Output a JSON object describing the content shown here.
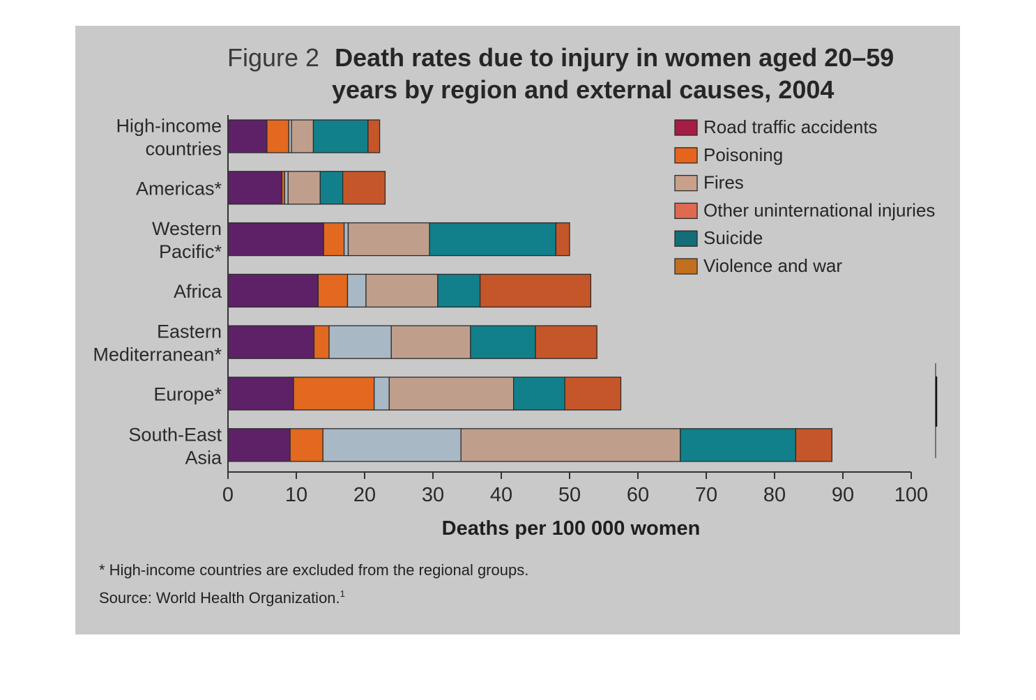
{
  "title_prefix": "Figure 2",
  "title_line1": "Death rates due to injury in women aged 20–59",
  "title_line2": "years by region and external causes, 2004",
  "footnote": "* High-income countries are excluded from the regional groups.",
  "source": "Source: World Health Organization.",
  "source_sup": "1",
  "chart_data": {
    "type": "bar",
    "orientation": "horizontal",
    "stacked": true,
    "title": "Death rates due to injury in women aged 20–59 years by region and external causes, 2004",
    "xlabel": "Deaths per 100 000 women",
    "ylabel": "",
    "xlim": [
      0,
      100
    ],
    "xticks": [
      0,
      10,
      20,
      30,
      40,
      50,
      60,
      70,
      80,
      90,
      100
    ],
    "legend_position": "top-right",
    "grid": false,
    "categories": [
      {
        "line1": "High-income",
        "line2": "countries"
      },
      {
        "line1": "Americas*",
        "line2": ""
      },
      {
        "line1": "Western",
        "line2": "Pacific*"
      },
      {
        "line1": "Africa",
        "line2": ""
      },
      {
        "line1": "Eastern",
        "line2": "Mediterranean*"
      },
      {
        "line1": "Europe*",
        "line2": ""
      },
      {
        "line1": "South-East",
        "line2": "Asia"
      }
    ],
    "series": [
      {
        "name": "Road traffic accidents",
        "color": "#5e2167",
        "values": [
          5.7,
          7.9,
          14.0,
          13.2,
          12.6,
          9.6,
          9.1
        ]
      },
      {
        "name": "Poisoning",
        "color": "#e2691f",
        "values": [
          3.2,
          0.4,
          3.0,
          4.3,
          2.2,
          11.8,
          4.8
        ]
      },
      {
        "name": "",
        "color": "#a9b8c5",
        "values": [
          0.4,
          0.5,
          0.6,
          2.7,
          9.1,
          2.2,
          20.2
        ]
      },
      {
        "name": "Fires",
        "color": "#bf9f8c",
        "values": [
          3.2,
          4.7,
          11.9,
          10.5,
          11.6,
          18.2,
          32.1
        ]
      },
      {
        "name": "Suicide",
        "color": "#12808a",
        "values": [
          8.0,
          3.3,
          18.5,
          6.2,
          9.5,
          7.5,
          16.9
        ]
      },
      {
        "name": "Violence and war",
        "color": "#c5562a",
        "values": [
          1.7,
          6.2,
          2.0,
          16.2,
          9.0,
          8.2,
          5.3
        ]
      }
    ]
  },
  "legend": [
    {
      "label": "Road traffic accidents",
      "color": "#a51c45"
    },
    {
      "label": "Poisoning",
      "color": "#e6641c"
    },
    {
      "label": "Fires",
      "color": "#c9a08a"
    },
    {
      "label": "Other uninternational injuries",
      "color": "#df6a52"
    },
    {
      "label": "Suicide",
      "color": "#156d78"
    },
    {
      "label": "Violence and war",
      "color": "#c2701f"
    }
  ]
}
